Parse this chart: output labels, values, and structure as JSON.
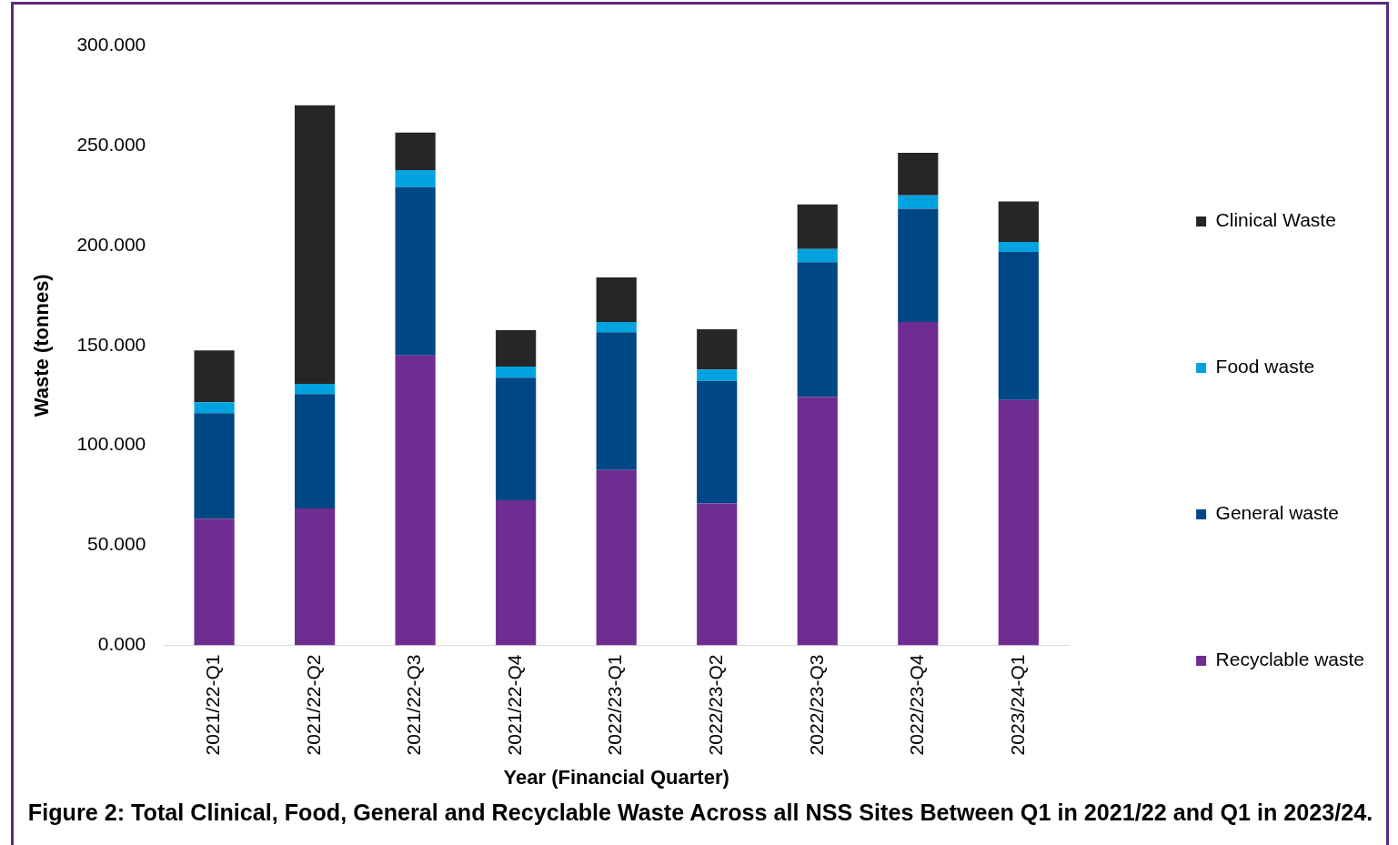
{
  "chart_data": {
    "type": "bar",
    "stacked": true,
    "title": "Figure 2: Total Clinical, Food, General and Recyclable Waste Across all NSS Sites Between Q1 in 2021/22 and Q1 in 2023/24.",
    "xlabel": "Year (Financial Quarter)",
    "ylabel": "Waste (tonnes)",
    "categories": [
      "2021/22-Q1",
      "2021/22-Q2",
      "2021/22-Q3",
      "2021/22-Q4",
      "2022/23-Q1",
      "2022/23-Q2",
      "2022/23-Q3",
      "2022/23-Q4",
      "2023/24-Q1"
    ],
    "series": [
      {
        "name": "Recyclable waste",
        "color": "#6f2c91",
        "values": [
          63.3,
          68.4,
          145.0,
          72.5,
          87.7,
          71.0,
          124.2,
          161.7,
          122.7
        ]
      },
      {
        "name": "General waste",
        "color": "#004785",
        "values": [
          52.8,
          57.3,
          84.1,
          61.3,
          68.9,
          61.3,
          67.4,
          56.7,
          74.0
        ]
      },
      {
        "name": "Food waste",
        "color": "#00a3e0",
        "values": [
          5.5,
          5.1,
          8.6,
          5.6,
          5.1,
          5.6,
          6.6,
          6.6,
          5.0
        ]
      },
      {
        "name": "Clinical Waste",
        "color": "#262626",
        "values": [
          25.9,
          139.3,
          18.8,
          18.2,
          22.3,
          20.2,
          22.3,
          21.3,
          20.3
        ]
      }
    ],
    "ylim": [
      0,
      300
    ],
    "yticks": [
      {
        "value": 0,
        "label": "0.000"
      },
      {
        "value": 50,
        "label": "50.000"
      },
      {
        "value": 100,
        "label": "100.000"
      },
      {
        "value": 150,
        "label": "150.000"
      },
      {
        "value": 200,
        "label": "200.000"
      },
      {
        "value": 250,
        "label": "250.000"
      },
      {
        "value": 300,
        "label": "300.000"
      }
    ],
    "grid": false,
    "legend": "right"
  }
}
